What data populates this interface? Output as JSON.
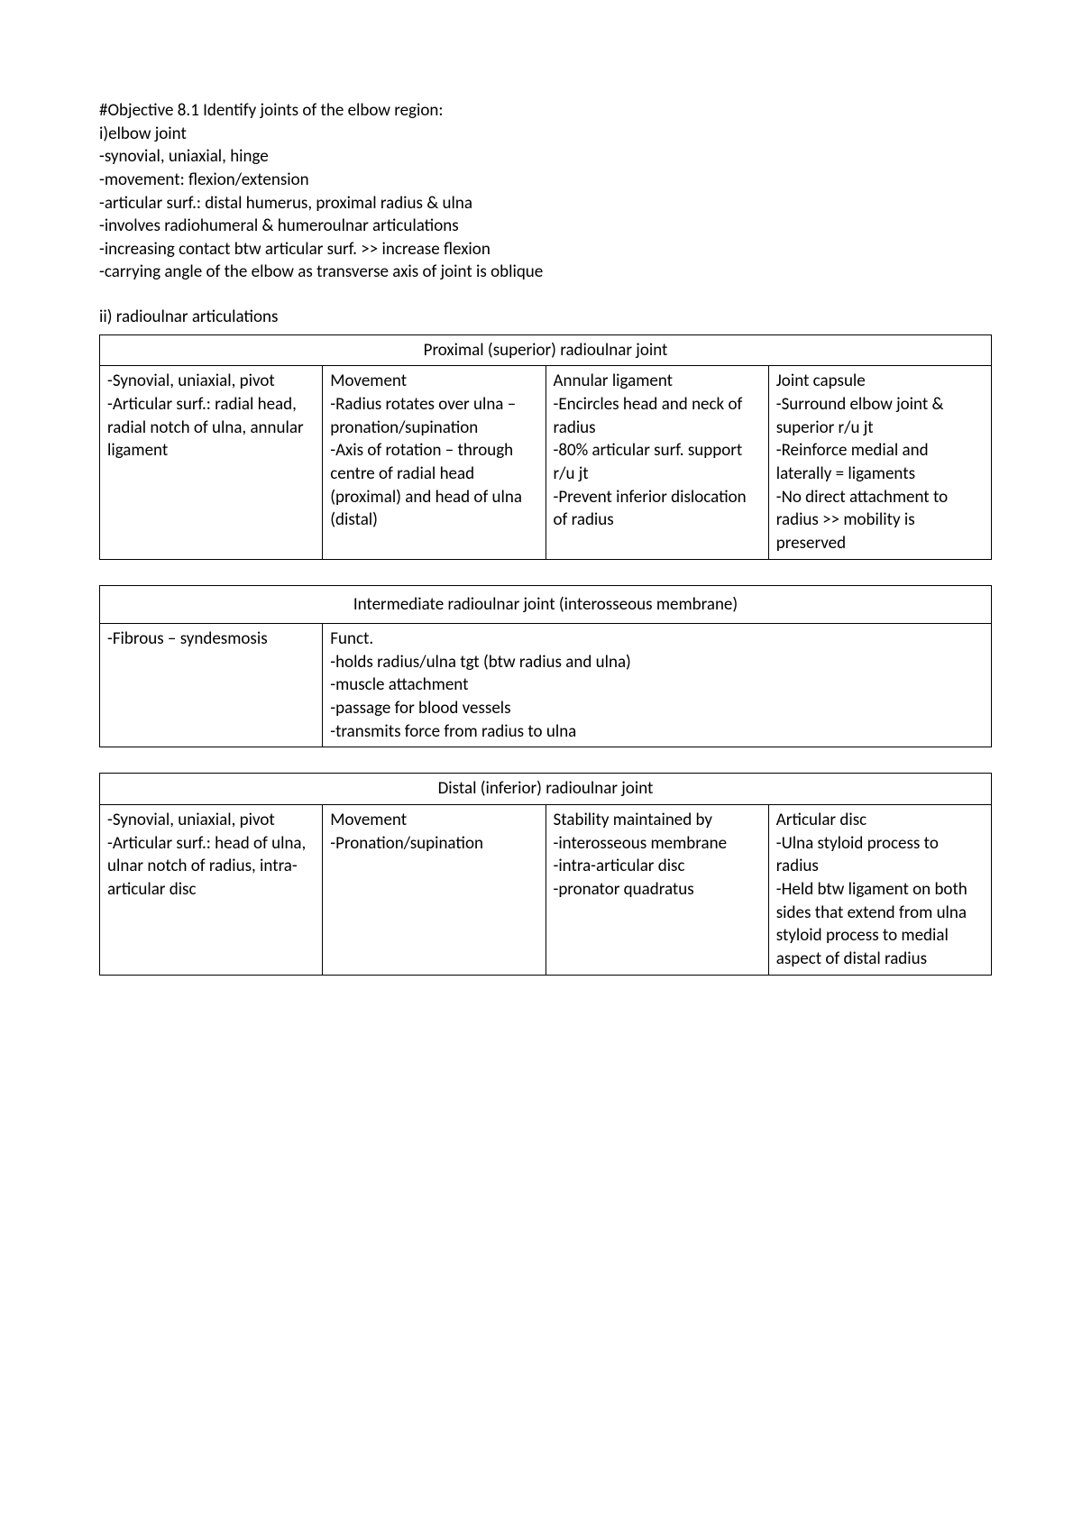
{
  "intro": {
    "lines": [
      "#Objective 8.1 Identify joints of the elbow region:",
      "i)elbow joint",
      "-synovial, uniaxial, hinge",
      "-movement: flexion/extension",
      "-articular surf.: distal humerus, proximal radius & ulna",
      "-involves radiohumeral & humeroulnar articulations",
      "-increasing contact btw articular surf. >> increase flexion",
      "-carrying angle of the elbow as transverse axis of joint is oblique"
    ],
    "subheading": "ii) radioulnar articulations"
  },
  "table1": {
    "title": "Proximal (superior) radioulnar joint",
    "cells": {
      "c0": "-Synovial, uniaxial, pivot\n-Articular surf.: radial head, radial notch of ulna, annular ligament",
      "c1": "Movement\n-Radius rotates over ulna – pronation/supination\n-Axis of rotation – through centre of radial head (proximal) and head of ulna (distal)",
      "c2": "Annular ligament\n-Encircles head and neck of radius\n-80% articular surf. support r/u jt\n-Prevent inferior dislocation of radius",
      "c3": "Joint capsule\n-Surround elbow joint & superior r/u jt\n-Reinforce medial and laterally = ligaments\n-No direct attachment to radius >> mobility is preserved"
    }
  },
  "table2": {
    "title": "Intermediate radioulnar joint (interosseous membrane)",
    "cells": {
      "c0": "-Fibrous – syndesmosis",
      "c1": "Funct.\n-holds radius/ulna tgt (btw radius and ulna)\n-muscle attachment\n-passage for blood vessels\n-transmits force from radius to ulna"
    }
  },
  "table3": {
    "title": "Distal (inferior) radioulnar joint",
    "cells": {
      "c0": "-Synovial, uniaxial, pivot\n-Articular surf.: head of ulna, ulnar notch of radius, intra-articular disc",
      "c1": "Movement\n-Pronation/supination",
      "c2": "Stability maintained by\n-interosseous membrane\n-intra-articular disc\n-pronator quadratus",
      "c3": "Articular disc\n-Ulna styloid process to radius\n-Held btw ligament on both sides that extend from ulna styloid process to medial aspect of distal radius\n "
    }
  }
}
